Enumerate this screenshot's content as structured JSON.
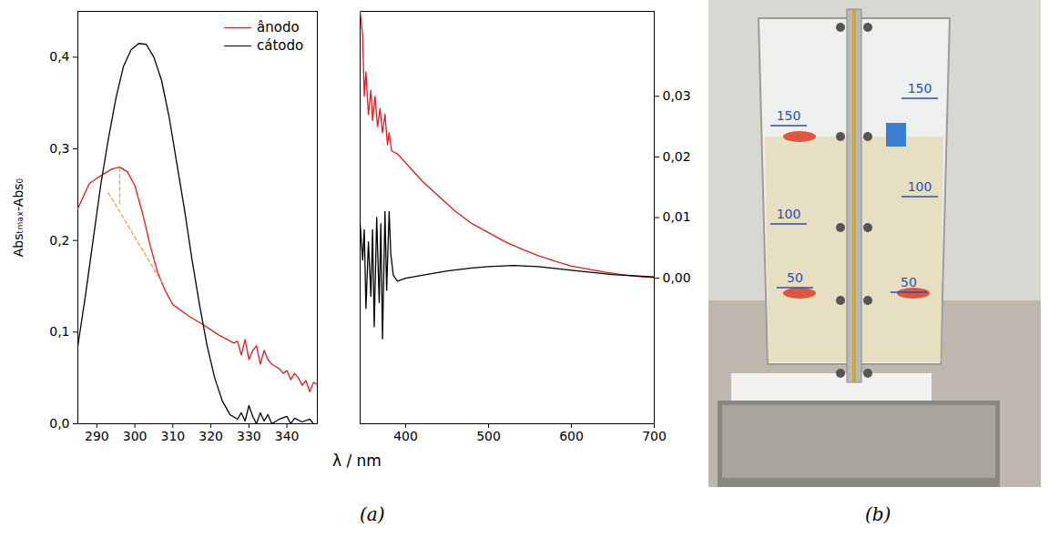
{
  "chart_data": [
    {
      "type": "line",
      "ylabel": "Absₜₘₐₓ-Abs₀",
      "xlim": [
        285,
        348
      ],
      "xticks": [
        290,
        300,
        310,
        320,
        330,
        340
      ],
      "ylim": [
        0,
        0.45
      ],
      "yticks": [
        {
          "value": 0,
          "label": "0,0"
        },
        {
          "value": 0.1,
          "label": "0,1"
        },
        {
          "value": 0.2,
          "label": "0,2"
        },
        {
          "value": 0.3,
          "label": "0,3"
        },
        {
          "value": 0.4,
          "label": "0,4"
        }
      ],
      "legend": "upper right",
      "series": [
        {
          "name": "ânodo",
          "color": "#e8191d",
          "x": [
            285,
            288,
            290,
            292,
            294,
            296,
            298,
            300,
            302,
            304,
            306,
            308,
            310,
            314,
            318,
            322,
            326,
            327,
            328,
            329,
            330,
            331,
            332,
            333,
            334,
            335,
            336,
            338,
            339,
            340,
            341,
            342,
            343,
            344,
            345,
            346,
            347,
            348
          ],
          "values": [
            0.235,
            0.262,
            0.268,
            0.273,
            0.278,
            0.28,
            0.275,
            0.26,
            0.23,
            0.195,
            0.165,
            0.145,
            0.13,
            0.118,
            0.108,
            0.097,
            0.088,
            0.09,
            0.075,
            0.092,
            0.07,
            0.08,
            0.085,
            0.065,
            0.08,
            0.07,
            0.065,
            0.06,
            0.055,
            0.058,
            0.048,
            0.055,
            0.05,
            0.042,
            0.047,
            0.035,
            0.045,
            0.043
          ]
        },
        {
          "name": "cátodo",
          "color": "#000000",
          "x": [
            285,
            287,
            289,
            291,
            293,
            295,
            297,
            299,
            301,
            303,
            305,
            307,
            309,
            311,
            313,
            315,
            317,
            319,
            321,
            323,
            325,
            327,
            328,
            329,
            330,
            331,
            332,
            333,
            334,
            335,
            336,
            338,
            340,
            341,
            342,
            344,
            346,
            347
          ],
          "values": [
            0.085,
            0.14,
            0.2,
            0.26,
            0.31,
            0.355,
            0.39,
            0.408,
            0.415,
            0.414,
            0.4,
            0.375,
            0.335,
            0.285,
            0.235,
            0.18,
            0.13,
            0.085,
            0.05,
            0.025,
            0.01,
            0.005,
            0.012,
            0.003,
            0.02,
            0.008,
            0.0,
            0.012,
            0.003,
            0.01,
            0.0,
            0.005,
            0.008,
            0.0,
            0.006,
            0.002,
            0.005,
            0.0
          ]
        },
        {
          "color": "#f0a050",
          "line_style": "dashed",
          "x": [
            296,
            296
          ],
          "values": [
            0.279,
            0.238
          ]
        },
        {
          "color": "#f0a050",
          "line_style": "dashed",
          "x": [
            293,
            307
          ],
          "values": [
            0.252,
            0.155
          ]
        }
      ]
    },
    {
      "type": "line",
      "xlim": [
        345,
        700
      ],
      "xticks": [
        400,
        500,
        600,
        700
      ],
      "y2lim": [
        -0.024,
        0.044
      ],
      "y2ticks": [
        {
          "value": 0,
          "label": "0,00"
        },
        {
          "value": 0.01,
          "label": "0,01"
        },
        {
          "value": 0.02,
          "label": "0,02"
        },
        {
          "value": 0.03,
          "label": "0,03"
        }
      ],
      "series": [
        {
          "name": "ânodo",
          "color": "#e8191d",
          "axis": "y2",
          "x": [
            345,
            348,
            350,
            352,
            355,
            358,
            360,
            363,
            366,
            369,
            372,
            375,
            378,
            380,
            383,
            390,
            400,
            420,
            440,
            460,
            480,
            500,
            520,
            540,
            560,
            580,
            600,
            620,
            640,
            660,
            680,
            700
          ],
          "values": [
            0.044,
            0.04,
            0.03,
            0.034,
            0.027,
            0.031,
            0.026,
            0.03,
            0.025,
            0.028,
            0.024,
            0.027,
            0.022,
            0.024,
            0.021,
            0.0205,
            0.019,
            0.016,
            0.0135,
            0.011,
            0.009,
            0.0075,
            0.006,
            0.0048,
            0.0037,
            0.0028,
            0.002,
            0.0015,
            0.001,
            0.0006,
            0.0003,
            0.0001
          ]
        },
        {
          "name": "cátodo",
          "color": "#000000",
          "axis": "y2",
          "x": [
            345,
            348,
            350,
            352,
            355,
            358,
            360,
            362,
            365,
            368,
            370,
            372,
            375,
            377,
            380,
            382,
            385,
            390,
            400,
            420,
            450,
            480,
            500,
            530,
            560,
            600,
            650,
            700
          ],
          "values": [
            0.009,
            0.003,
            0.008,
            -0.005,
            0.006,
            -0.003,
            0.008,
            -0.008,
            0.01,
            -0.004,
            0.009,
            -0.01,
            0.011,
            -0.002,
            0.011,
            0.004,
            0.0005,
            -0.0005,
            0.0,
            0.0005,
            0.0012,
            0.0017,
            0.0019,
            0.0021,
            0.0019,
            0.0013,
            0.0006,
            0.0002
          ]
        }
      ]
    }
  ],
  "figure": {
    "xlabel": "λ / nm",
    "panel_labels": [
      "(a)",
      "(b)"
    ]
  },
  "photo": {
    "beaker_marks": [
      "150",
      "150",
      "100",
      "100",
      "50",
      "50"
    ]
  }
}
